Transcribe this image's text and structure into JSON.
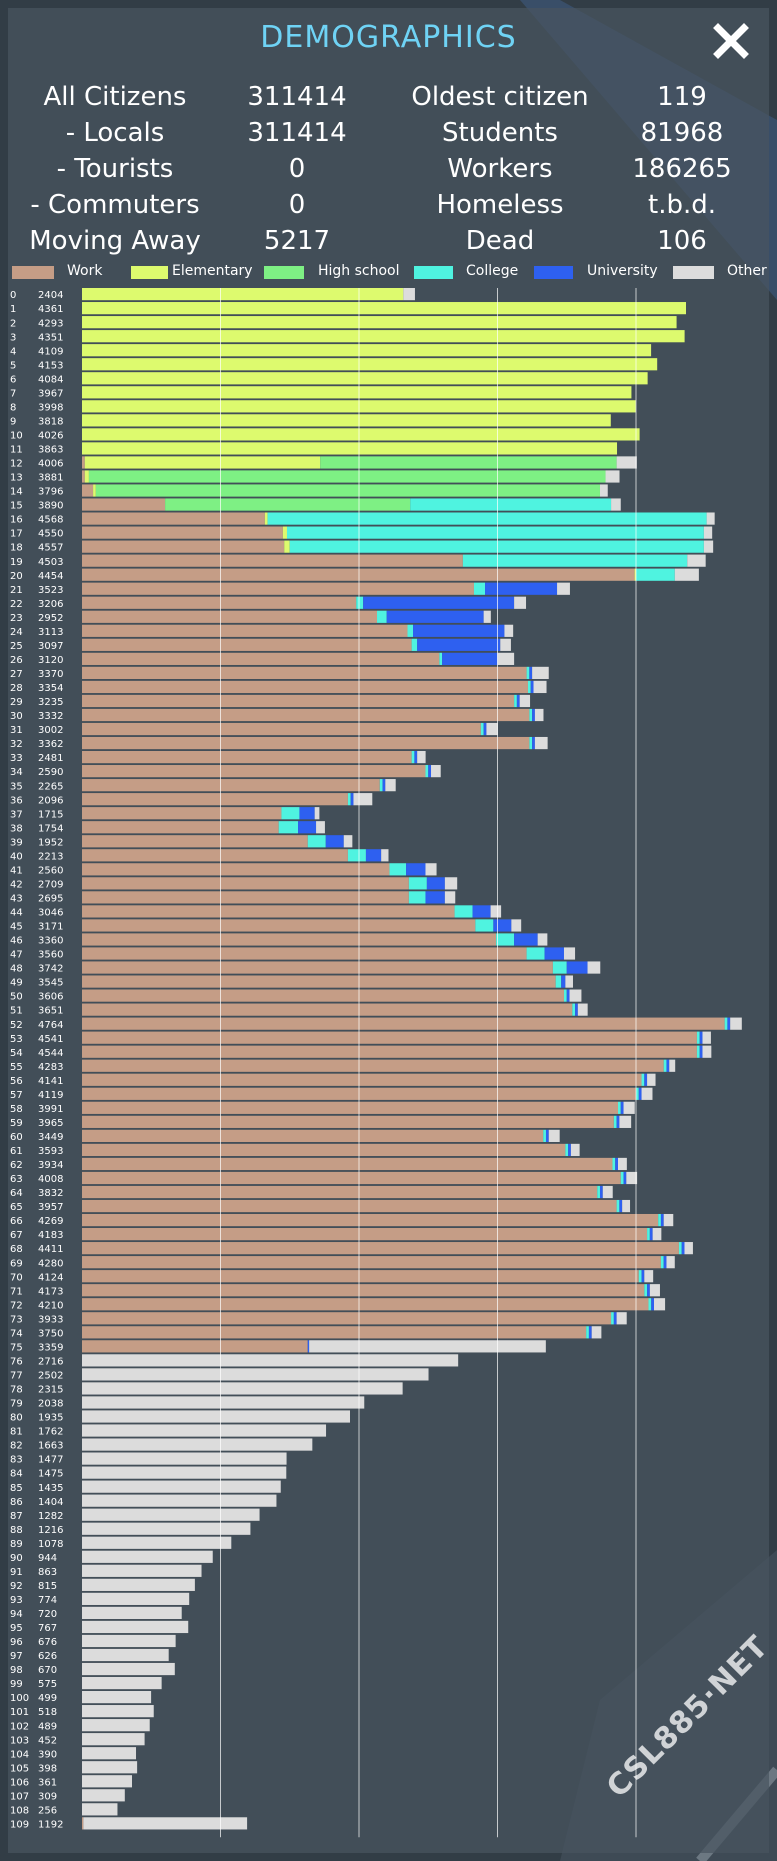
{
  "header": {
    "title": "DEMOGRAPHICS",
    "close_icon": "close-x-icon"
  },
  "stats": {
    "left": [
      {
        "label": "All Citizens",
        "value": "311414"
      },
      {
        "label": "- Locals",
        "value": "311414"
      },
      {
        "label": "- Tourists",
        "value": "0"
      },
      {
        "label": "- Commuters",
        "value": "0"
      },
      {
        "label": "Moving Away",
        "value": "5217"
      }
    ],
    "right": [
      {
        "label": "Oldest citizen",
        "value": "119"
      },
      {
        "label": "Students",
        "value": "81968"
      },
      {
        "label": "Workers",
        "value": "186265"
      },
      {
        "label": "Homeless",
        "value": "t.b.d."
      },
      {
        "label": "Dead",
        "value": "106"
      }
    ]
  },
  "legend": [
    {
      "key": "work",
      "label": "Work",
      "color": "#c59d86"
    },
    {
      "key": "elementary",
      "label": "Elementary",
      "color": "#ddfa6e"
    },
    {
      "key": "highschool",
      "label": "High school",
      "color": "#7ef084"
    },
    {
      "key": "college",
      "label": "College",
      "color": "#4ff3e0"
    },
    {
      "key": "university",
      "label": "University",
      "color": "#2e60f0"
    },
    {
      "key": "other",
      "label": "Other",
      "color": "#dcdcdc"
    }
  ],
  "watermark": "CSL885·NET",
  "chart_data": {
    "type": "bar",
    "orientation": "horizontal-stacked",
    "categories": [
      "0",
      "1",
      "2",
      "3",
      "4",
      "5",
      "6",
      "7",
      "8",
      "9",
      "10",
      "11",
      "12",
      "13",
      "14",
      "15",
      "16",
      "17",
      "18",
      "19",
      "20",
      "21",
      "22",
      "23",
      "24",
      "25",
      "26",
      "27",
      "28",
      "29",
      "30",
      "31",
      "32",
      "33",
      "34",
      "35",
      "36",
      "37",
      "38",
      "39",
      "40",
      "41",
      "42",
      "43",
      "44",
      "45",
      "46",
      "47",
      "48",
      "49",
      "50",
      "51",
      "52",
      "53",
      "54",
      "55",
      "56",
      "57",
      "58",
      "59",
      "60",
      "61",
      "62",
      "63",
      "64",
      "65",
      "66",
      "67",
      "68",
      "69",
      "70",
      "71",
      "72",
      "73",
      "74",
      "75",
      "76",
      "77",
      "78",
      "79",
      "80",
      "81",
      "82",
      "83",
      "84",
      "85",
      "86",
      "87",
      "88",
      "89",
      "90",
      "91",
      "92",
      "93",
      "94",
      "95",
      "96",
      "97",
      "98",
      "99",
      "100",
      "101",
      "102",
      "103",
      "104",
      "105",
      "106",
      "107",
      "108",
      "109"
    ],
    "totals": [
      2404,
      4361,
      4293,
      4351,
      4109,
      4153,
      4084,
      3967,
      3998,
      3818,
      4026,
      3863,
      4006,
      3881,
      3796,
      3890,
      4568,
      4550,
      4557,
      4503,
      4454,
      3523,
      3206,
      2952,
      3113,
      3097,
      3120,
      3370,
      3354,
      3235,
      3332,
      3002,
      3362,
      2481,
      2590,
      2265,
      2096,
      1715,
      1754,
      1952,
      2213,
      2560,
      2709,
      2695,
      3046,
      3171,
      3360,
      3560,
      3742,
      3545,
      3606,
      3651,
      4764,
      4541,
      4544,
      4283,
      4141,
      4119,
      3991,
      3965,
      3449,
      3593,
      3934,
      4008,
      3832,
      3957,
      4269,
      4183,
      4411,
      4280,
      4124,
      4173,
      4210,
      3933,
      3750,
      3359,
      2716,
      2502,
      2315,
      2038,
      1935,
      1762,
      1663,
      1477,
      1475,
      1435,
      1404,
      1282,
      1216,
      1078,
      944,
      863,
      815,
      774,
      720,
      767,
      676,
      626,
      670,
      575,
      499,
      518,
      489,
      452,
      390,
      398,
      361,
      309,
      256,
      1192
    ],
    "series": [
      {
        "name": "Work",
        "values": [
          0,
          0,
          0,
          0,
          0,
          0,
          0,
          0,
          0,
          0,
          0,
          0,
          20,
          20,
          80,
          600,
          1320,
          1450,
          1460,
          2750,
          3990,
          2830,
          1980,
          2130,
          2350,
          2380,
          2580,
          3210,
          3220,
          3120,
          3230,
          2880,
          3230,
          2380,
          2480,
          2150,
          1920,
          1440,
          1420,
          1630,
          1920,
          2220,
          2360,
          2360,
          2690,
          2840,
          2990,
          3210,
          3400,
          3420,
          3480,
          3540,
          4640,
          4440,
          4440,
          4200,
          4040,
          4000,
          3870,
          3840,
          3330,
          3490,
          3830,
          3890,
          3720,
          3860,
          4160,
          4080,
          4310,
          4180,
          4020,
          4060,
          4090,
          3820,
          3640,
          1630,
          0,
          0,
          0,
          0,
          0,
          0,
          0,
          0,
          0,
          0,
          0,
          0,
          0,
          0,
          0,
          0,
          0,
          0,
          0,
          0,
          0,
          0,
          0,
          0,
          0,
          0,
          0,
          0,
          0,
          0,
          0,
          0,
          0,
          10
        ]
      },
      {
        "name": "Elementary",
        "values": [
          2320,
          4361,
          4293,
          4351,
          4109,
          4153,
          4084,
          3967,
          3998,
          3818,
          4026,
          3863,
          1700,
          30,
          20,
          0,
          20,
          30,
          40,
          0,
          10,
          0,
          0,
          0,
          0,
          0,
          0,
          0,
          0,
          0,
          0,
          0,
          0,
          0,
          0,
          0,
          0,
          0,
          0,
          0,
          0,
          0,
          0,
          0,
          0,
          0,
          0,
          0,
          0,
          0,
          0,
          0,
          0,
          0,
          0,
          0,
          0,
          0,
          0,
          0,
          0,
          0,
          0,
          0,
          0,
          0,
          0,
          0,
          0,
          0,
          0,
          0,
          0,
          0,
          0,
          0,
          0,
          0,
          0,
          0,
          0,
          0,
          0,
          0,
          0,
          0,
          0,
          0,
          0,
          0,
          0,
          0,
          0,
          0,
          0,
          0,
          0,
          0,
          0,
          0,
          0,
          0,
          0,
          0,
          0,
          0,
          0,
          0,
          0,
          0
        ]
      },
      {
        "name": "High school",
        "values": [
          0,
          0,
          0,
          0,
          0,
          0,
          0,
          0,
          0,
          0,
          0,
          0,
          2140,
          3730,
          3640,
          1770,
          0,
          0,
          0,
          0,
          0,
          0,
          0,
          0,
          0,
          0,
          0,
          0,
          0,
          0,
          0,
          0,
          0,
          0,
          0,
          0,
          0,
          0,
          0,
          0,
          0,
          0,
          0,
          0,
          0,
          0,
          0,
          0,
          0,
          0,
          0,
          0,
          0,
          0,
          0,
          0,
          0,
          0,
          0,
          0,
          0,
          0,
          0,
          0,
          0,
          0,
          0,
          0,
          0,
          0,
          0,
          0,
          0,
          0,
          0,
          0,
          0,
          0,
          0,
          0,
          0,
          0,
          0,
          0,
          0,
          0,
          0,
          0,
          0,
          0,
          0,
          0,
          0,
          0,
          0,
          0,
          0,
          0,
          0,
          0,
          0,
          0,
          0,
          0,
          0,
          0,
          0,
          0,
          0,
          0
        ]
      },
      {
        "name": "College",
        "values": [
          0,
          0,
          0,
          0,
          0,
          0,
          0,
          0,
          0,
          0,
          0,
          0,
          0,
          0,
          0,
          1450,
          3170,
          3010,
          2990,
          1620,
          280,
          80,
          50,
          70,
          40,
          40,
          20,
          20,
          20,
          20,
          20,
          20,
          20,
          20,
          20,
          20,
          20,
          130,
          140,
          130,
          130,
          120,
          130,
          120,
          130,
          130,
          130,
          130,
          100,
          40,
          20,
          20,
          20,
          20,
          20,
          20,
          20,
          20,
          20,
          20,
          20,
          20,
          20,
          20,
          20,
          20,
          20,
          20,
          20,
          20,
          20,
          20,
          20,
          20,
          20,
          0,
          0,
          0,
          0,
          0,
          0,
          0,
          0,
          0,
          0,
          0,
          0,
          0,
          0,
          0,
          0,
          0,
          0,
          0,
          0,
          0,
          0,
          0,
          0,
          0,
          0,
          0,
          0,
          0,
          0,
          0,
          0,
          0,
          0,
          0
        ]
      },
      {
        "name": "University",
        "values": [
          0,
          0,
          0,
          0,
          0,
          0,
          0,
          0,
          0,
          0,
          0,
          0,
          0,
          0,
          0,
          0,
          0,
          0,
          0,
          0,
          0,
          520,
          1090,
          700,
          660,
          600,
          400,
          20,
          20,
          20,
          20,
          20,
          20,
          20,
          20,
          20,
          20,
          110,
          130,
          130,
          110,
          140,
          130,
          140,
          130,
          130,
          170,
          140,
          150,
          30,
          20,
          20,
          20,
          20,
          20,
          20,
          20,
          20,
          20,
          20,
          20,
          20,
          20,
          20,
          20,
          20,
          20,
          20,
          20,
          20,
          20,
          20,
          20,
          20,
          20,
          10,
          0,
          0,
          0,
          0,
          0,
          0,
          0,
          0,
          0,
          0,
          0,
          0,
          0,
          0,
          0,
          0,
          0,
          0,
          0,
          0,
          0,
          0,
          0,
          0,
          0,
          0,
          0,
          0,
          0,
          0,
          0,
          0,
          0,
          0
        ]
      },
      {
        "name": "Other",
        "values": [
          84,
          0,
          0,
          0,
          0,
          0,
          0,
          0,
          0,
          0,
          0,
          0,
          146,
          101,
          56,
          70,
          58,
          60,
          67,
          133,
          174,
          93,
          86,
          52,
          63,
          77,
          120,
          120,
          94,
          75,
          62,
          82,
          92,
          61,
          70,
          75,
          136,
          34,
          64,
          62,
          53,
          80,
          89,
          75,
          76,
          71,
          70,
          80,
          92,
          55,
          86,
          71,
          84,
          61,
          64,
          43,
          61,
          79,
          81,
          85,
          79,
          63,
          64,
          78,
          72,
          57,
          69,
          63,
          61,
          60,
          64,
          73,
          80,
          73,
          70,
          1709,
          2716,
          2502,
          2315,
          2038,
          1935,
          1762,
          1663,
          1477,
          1475,
          1435,
          1404,
          1282,
          1216,
          1078,
          944,
          863,
          815,
          774,
          720,
          767,
          676,
          626,
          670,
          575,
          499,
          518,
          489,
          452,
          390,
          398,
          361,
          309,
          256,
          1182
        ]
      }
    ],
    "xlim": [
      0,
      5000
    ],
    "gridlines": [
      1000,
      2000,
      3000,
      4000
    ],
    "grid": true,
    "legend_position": "top"
  }
}
